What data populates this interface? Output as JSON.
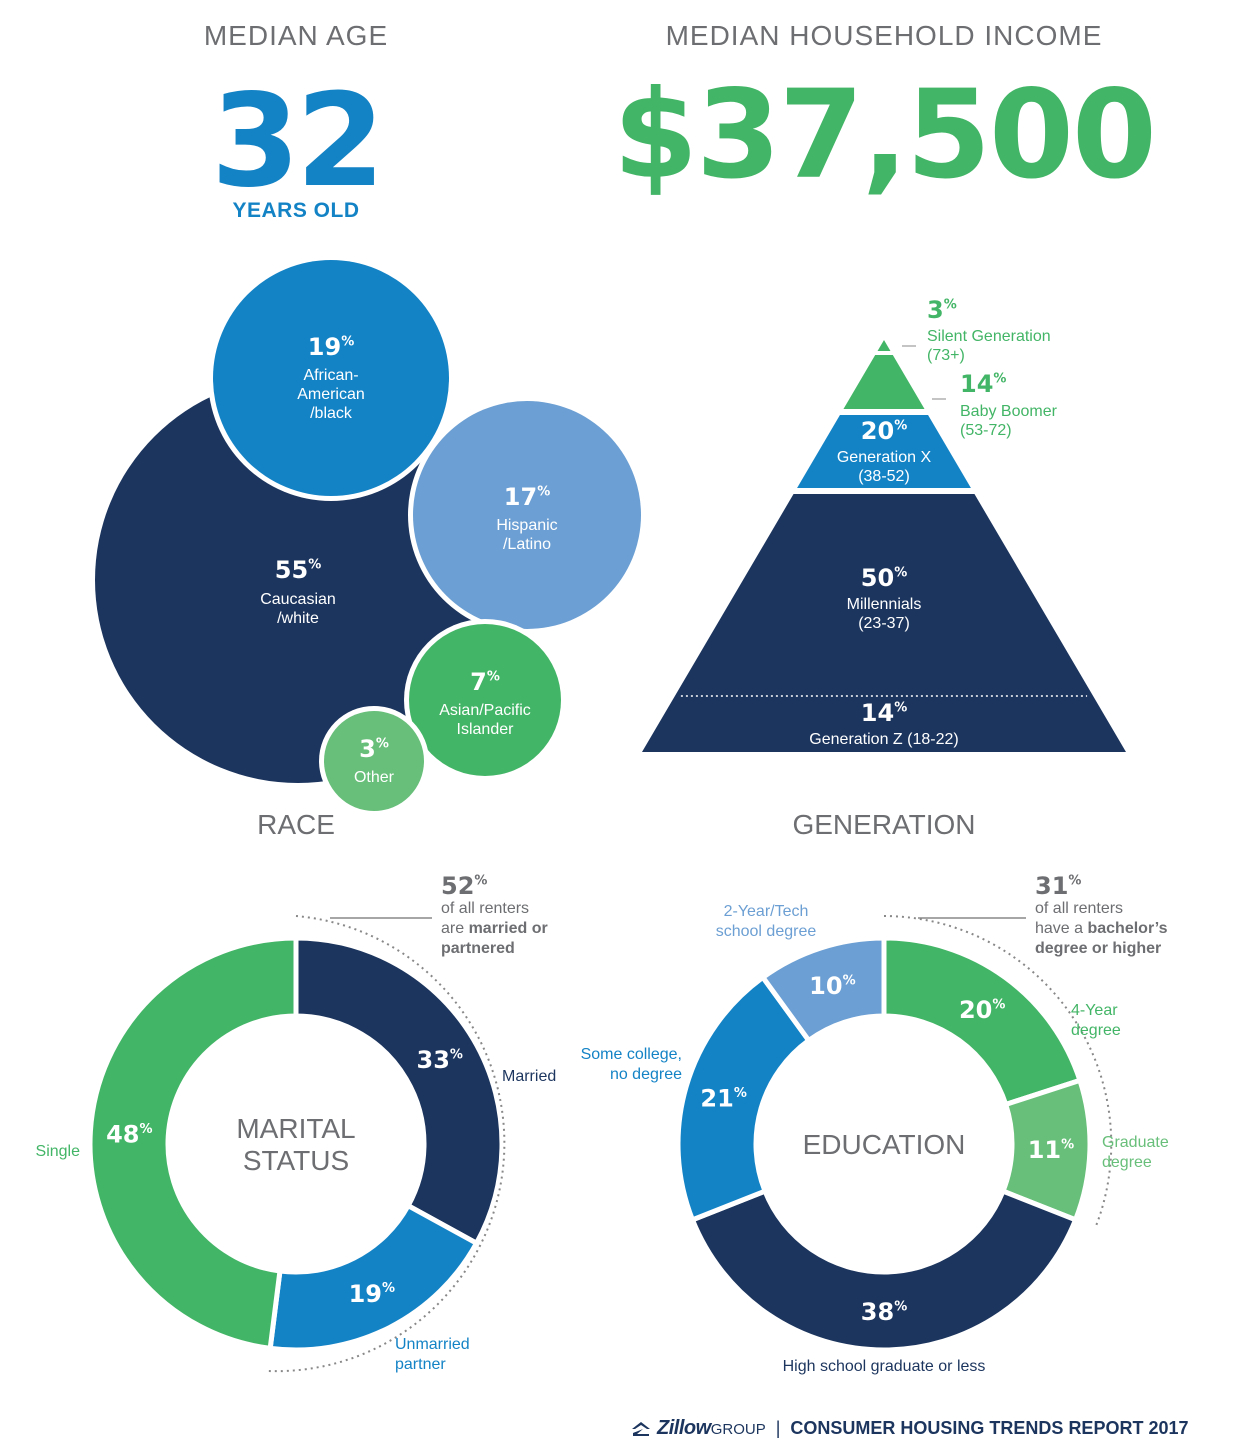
{
  "header": {
    "median_age_label": "MEDIAN AGE",
    "median_age_value": "32",
    "median_age_unit": "YEARS OLD",
    "income_label": "MEDIAN HOUSEHOLD INCOME",
    "income_value": "$37,500"
  },
  "colors": {
    "navy": "#1c355e",
    "blue": "#1483c6",
    "light_blue": "#6c9fd3",
    "green": "#43b566",
    "light_green": "#68bf7a",
    "gray_text": "#6d6e71"
  },
  "chart_data": [
    {
      "type": "bubble",
      "title": "RACE",
      "items": [
        {
          "value": 55,
          "label_lines": [
            "Caucasian",
            "/white"
          ],
          "color": "#1c355e"
        },
        {
          "value": 19,
          "label_lines": [
            "African-",
            "American",
            "/black"
          ],
          "color": "#1483c6"
        },
        {
          "value": 17,
          "label_lines": [
            "Hispanic",
            "/Latino"
          ],
          "color": "#6c9fd3"
        },
        {
          "value": 7,
          "label_lines": [
            "Asian/Pacific",
            "Islander"
          ],
          "color": "#43b566"
        },
        {
          "value": 3,
          "label_lines": [
            "Other"
          ],
          "color": "#68bf7a"
        }
      ]
    },
    {
      "type": "pyramid",
      "title": "GENERATION",
      "items": [
        {
          "value": 3,
          "label": "Silent Generation",
          "range": "(73+)",
          "color": "#43b566"
        },
        {
          "value": 14,
          "label": "Baby Boomer",
          "range": "(53-72)",
          "color": "#43b566"
        },
        {
          "value": 20,
          "label": "Generation X",
          "range": "(38-52)",
          "color": "#1483c6"
        },
        {
          "value": 50,
          "label": "Millennials",
          "range": "(23-37)",
          "color": "#1c355e"
        },
        {
          "value": 14,
          "label": "Generation Z (18-22)",
          "range": "",
          "color": "#1c355e"
        }
      ]
    },
    {
      "type": "pie",
      "title_lines": [
        "MARITAL",
        "STATUS"
      ],
      "items": [
        {
          "value": 33,
          "label_lines": [
            "Married"
          ],
          "color": "#1c355e"
        },
        {
          "value": 19,
          "label_lines": [
            "Unmarried",
            "partner"
          ],
          "color": "#1483c6"
        },
        {
          "value": 48,
          "label_lines": [
            "Single"
          ],
          "color": "#43b566"
        }
      ],
      "callout": {
        "value": 52,
        "lines": [
          [
            "of all renters",
            ""
          ],
          [
            "are ",
            "married or"
          ],
          [
            "",
            "partnered"
          ]
        ]
      }
    },
    {
      "type": "pie",
      "title_lines": [
        "EDUCATION"
      ],
      "items": [
        {
          "value": 20,
          "label_lines": [
            "4-Year",
            "degree"
          ],
          "color": "#43b566"
        },
        {
          "value": 11,
          "label_lines": [
            "Graduate",
            "degree"
          ],
          "color": "#68bf7a"
        },
        {
          "value": 38,
          "label_lines": [
            "High school graduate or less"
          ],
          "color": "#1c355e"
        },
        {
          "value": 21,
          "label_lines": [
            "Some college,",
            "no degree"
          ],
          "color": "#1483c6"
        },
        {
          "value": 10,
          "label_lines": [
            "2-Year/Tech",
            "school degree"
          ],
          "color": "#6c9fd3"
        }
      ],
      "callout": {
        "value": 31,
        "lines": [
          [
            "of all renters",
            ""
          ],
          [
            "have a ",
            "bachelor’s"
          ],
          [
            "",
            "degree or higher"
          ]
        ]
      }
    }
  ],
  "footer": {
    "brand": "Zillow",
    "brand_suffix": "GROUP",
    "separator": "|",
    "report": "CONSUMER HOUSING TRENDS REPORT 2017"
  }
}
